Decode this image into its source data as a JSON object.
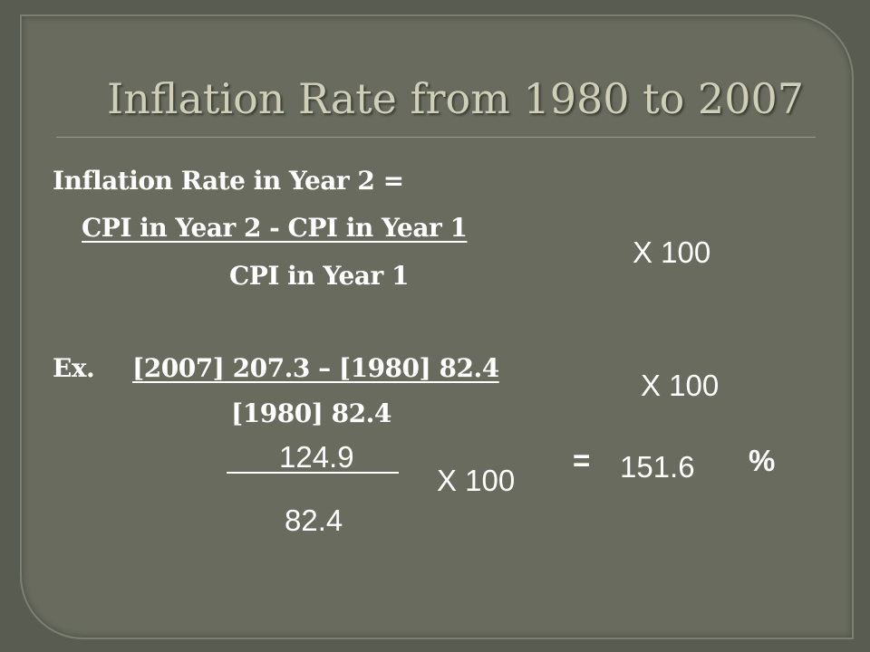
{
  "header": {
    "title": "Inflation Rate from 1980 to 2007"
  },
  "formula": {
    "lead": "Inflation Rate in Year 2 =",
    "numerator": "CPI in Year 2 - CPI in Year 1",
    "denominator": "CPI in Year 1",
    "multiplier": "X 100"
  },
  "example": {
    "label": "Ex.",
    "numerator": "[2007] 207.3 – [1980] 82.4",
    "denominator": "[1980] 82.4",
    "multiplier": "X 100"
  },
  "result": {
    "numerator": "124.9",
    "denominator": "82.4",
    "multiplier": "X 100",
    "equals": "=",
    "value": "151.6",
    "unit": "%"
  }
}
